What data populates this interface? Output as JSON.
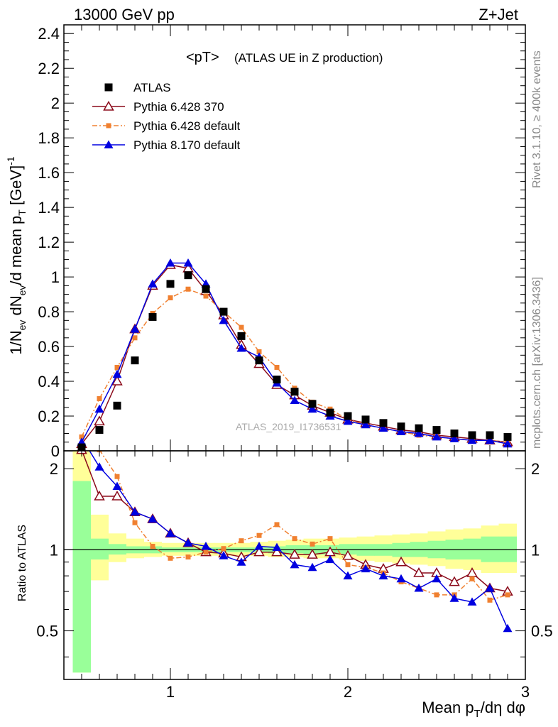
{
  "header": {
    "left": "13000 GeV pp",
    "right": "Z+Jet",
    "plot_title": "<pT>",
    "plot_subtitle": "(ATLAS UE in Z production)",
    "watermark": "ATLAS_2019_I1736531",
    "side_rivet": "Rivet 3.1.10, ≥ 400k events",
    "side_mcplots": "mcplots.cern.ch [arXiv:1306.3436]"
  },
  "colors": {
    "atlas": "#000000",
    "p6_370": "#8b0a1a",
    "p6_def": "#f08030",
    "p8_def": "#0000e0",
    "band_inner": "#99ff99",
    "band_outer": "#ffff99"
  },
  "chart_data": [
    {
      "type": "line",
      "panel": "main",
      "ylabel": "1/N_ev dN_ev/d mean p_T [GeV]^-1",
      "xlim": [
        0.4,
        3.0
      ],
      "ylim": [
        0,
        2.45
      ],
      "yticks": [
        0,
        0.2,
        0.4,
        0.6,
        0.8,
        1,
        1.2,
        1.4,
        1.6,
        1.8,
        2,
        2.2,
        2.4
      ],
      "ytick_labels": [
        "0",
        "0.2",
        "0.4",
        "0.6",
        "0.8",
        "1",
        "1.2",
        "1.4",
        "1.6",
        "1.8",
        "2",
        "2.2",
        "2.4"
      ],
      "x": [
        0.5,
        0.6,
        0.7,
        0.8,
        0.9,
        1.0,
        1.1,
        1.2,
        1.3,
        1.4,
        1.5,
        1.6,
        1.7,
        1.8,
        1.9,
        2.0,
        2.1,
        2.2,
        2.3,
        2.4,
        2.5,
        2.6,
        2.7,
        2.8,
        2.9
      ],
      "series": [
        {
          "name": "ATLAS",
          "marker": "square",
          "values": [
            0.02,
            0.12,
            0.26,
            0.52,
            0.77,
            0.96,
            1.01,
            0.93,
            0.8,
            0.66,
            0.52,
            0.41,
            0.34,
            0.27,
            0.22,
            0.2,
            0.18,
            0.16,
            0.14,
            0.13,
            0.12,
            0.1,
            0.09,
            0.09,
            0.08
          ]
        },
        {
          "name": "Pythia 6.428 370",
          "marker": "open-triangle",
          "values": [
            0.04,
            0.17,
            0.4,
            0.7,
            0.95,
            1.07,
            1.05,
            0.92,
            0.78,
            0.61,
            0.5,
            0.38,
            0.32,
            0.26,
            0.22,
            0.18,
            0.16,
            0.14,
            0.12,
            0.11,
            0.09,
            0.08,
            0.07,
            0.06,
            0.05
          ]
        },
        {
          "name": "Pythia 6.428 default",
          "marker": "small-square",
          "dash": true,
          "values": [
            0.08,
            0.3,
            0.48,
            0.65,
            0.79,
            0.88,
            0.93,
            0.89,
            0.8,
            0.71,
            0.57,
            0.48,
            0.36,
            0.28,
            0.24,
            0.18,
            0.15,
            0.13,
            0.11,
            0.09,
            0.08,
            0.07,
            0.06,
            0.06,
            0.05
          ]
        },
        {
          "name": "Pythia 8.170 default",
          "marker": "triangle",
          "values": [
            0.05,
            0.24,
            0.44,
            0.7,
            0.96,
            1.08,
            1.08,
            0.96,
            0.75,
            0.59,
            0.54,
            0.39,
            0.29,
            0.24,
            0.2,
            0.17,
            0.15,
            0.13,
            0.11,
            0.1,
            0.08,
            0.07,
            0.06,
            0.06,
            0.04
          ]
        }
      ]
    },
    {
      "type": "line",
      "panel": "ratio",
      "xlabel": "Mean p_T/dη dφ",
      "ylabel": "Ratio to ATLAS",
      "xlim": [
        0.4,
        3.0
      ],
      "ylim": [
        0.33,
        2.33
      ],
      "xticks": [
        1,
        2,
        3
      ],
      "xtick_labels": [
        "1",
        "2",
        "3"
      ],
      "yticks": [
        0.5,
        1,
        2
      ],
      "ytick_labels": [
        "0.5",
        "1",
        "2"
      ],
      "x": [
        0.5,
        0.6,
        0.7,
        0.8,
        0.9,
        1.0,
        1.1,
        1.2,
        1.3,
        1.4,
        1.5,
        1.6,
        1.7,
        1.8,
        1.9,
        2.0,
        2.1,
        2.2,
        2.3,
        2.4,
        2.5,
        2.6,
        2.7,
        2.8,
        2.9
      ],
      "band_inner": [
        [
          0.35,
          1.8
        ],
        [
          0.92,
          1.1
        ],
        [
          0.96,
          1.05
        ],
        [
          0.97,
          1.03
        ],
        [
          0.97,
          1.03
        ],
        [
          0.98,
          1.02
        ],
        [
          0.98,
          1.02
        ],
        [
          0.98,
          1.02
        ],
        [
          0.98,
          1.02
        ],
        [
          0.98,
          1.02
        ],
        [
          0.98,
          1.02
        ],
        [
          0.97,
          1.03
        ],
        [
          0.97,
          1.04
        ],
        [
          0.96,
          1.04
        ],
        [
          0.96,
          1.04
        ],
        [
          0.96,
          1.05
        ],
        [
          0.95,
          1.05
        ],
        [
          0.95,
          1.05
        ],
        [
          0.94,
          1.06
        ],
        [
          0.94,
          1.07
        ],
        [
          0.93,
          1.08
        ],
        [
          0.92,
          1.09
        ],
        [
          0.92,
          1.1
        ],
        [
          0.9,
          1.12
        ],
        [
          0.9,
          1.12
        ]
      ],
      "band_outer": [
        [
          0.35,
          2.35
        ],
        [
          0.77,
          1.35
        ],
        [
          0.9,
          1.15
        ],
        [
          0.93,
          1.1
        ],
        [
          0.94,
          1.07
        ],
        [
          0.95,
          1.06
        ],
        [
          0.95,
          1.06
        ],
        [
          0.95,
          1.06
        ],
        [
          0.95,
          1.06
        ],
        [
          0.95,
          1.06
        ],
        [
          0.95,
          1.07
        ],
        [
          0.94,
          1.08
        ],
        [
          0.94,
          1.09
        ],
        [
          0.93,
          1.1
        ],
        [
          0.93,
          1.1
        ],
        [
          0.92,
          1.11
        ],
        [
          0.91,
          1.12
        ],
        [
          0.9,
          1.13
        ],
        [
          0.89,
          1.14
        ],
        [
          0.88,
          1.15
        ],
        [
          0.87,
          1.17
        ],
        [
          0.85,
          1.19
        ],
        [
          0.84,
          1.2
        ],
        [
          0.82,
          1.23
        ],
        [
          0.82,
          1.25
        ]
      ],
      "series": [
        {
          "name": "Pythia 6.428 370",
          "marker": "open-triangle",
          "values": [
            2.35,
            1.58,
            1.58,
            1.38,
            1.3,
            1.15,
            1.06,
            0.98,
            0.97,
            0.94,
            0.98,
            0.98,
            0.96,
            0.96,
            0.98,
            0.95,
            0.88,
            0.85,
            0.9,
            0.82,
            0.82,
            0.76,
            0.82,
            0.72,
            0.7
          ]
        },
        {
          "name": "Pythia 6.428 default",
          "marker": "small-square",
          "dash": true,
          "values": [
            2.6,
            2.35,
            1.87,
            1.26,
            1.03,
            0.93,
            0.94,
            0.98,
            1.01,
            1.08,
            1.13,
            1.24,
            1.1,
            1.05,
            1.1,
            0.88,
            0.86,
            0.82,
            0.76,
            0.72,
            0.68,
            0.68,
            0.78,
            0.65,
            0.68
          ]
        },
        {
          "name": "Pythia 8.170 default",
          "marker": "triangle",
          "values": [
            2.6,
            2.03,
            1.72,
            1.38,
            1.3,
            1.15,
            1.06,
            1.03,
            0.95,
            0.9,
            1.03,
            1.02,
            0.88,
            0.86,
            0.92,
            0.8,
            0.85,
            0.8,
            0.78,
            0.72,
            0.78,
            0.66,
            0.64,
            0.72,
            0.51
          ]
        }
      ]
    }
  ]
}
